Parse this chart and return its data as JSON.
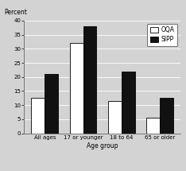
{
  "categories": [
    "All ages",
    "17 or younger",
    "18 to 64",
    "65 or older"
  ],
  "oqa_values": [
    12.5,
    32,
    11.5,
    5.5
  ],
  "sipp_values": [
    21,
    38,
    22,
    12.5
  ],
  "bar_colors": {
    "oqa": "#ffffff",
    "sipp": "#111111"
  },
  "bar_edge_color": "#000000",
  "ylabel": "Percent",
  "xlabel": "Age group",
  "ylim": [
    0,
    40
  ],
  "yticks": [
    0,
    5,
    10,
    15,
    20,
    25,
    30,
    35,
    40
  ],
  "legend_labels": [
    "OQA",
    "SIPP"
  ],
  "background_color": "#d3d3d3",
  "bar_width": 0.35,
  "axis_fontsize": 5.5,
  "tick_fontsize": 5.0,
  "legend_fontsize": 5.5
}
